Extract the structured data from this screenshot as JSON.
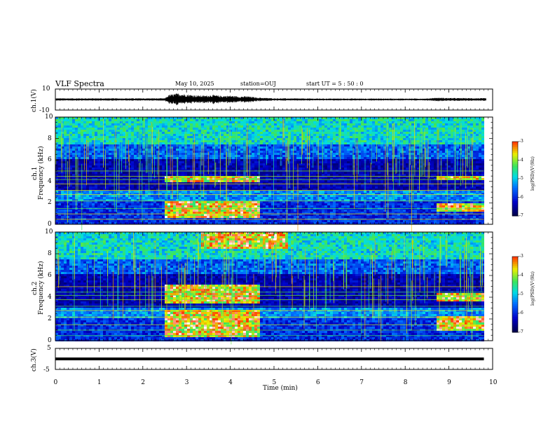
{
  "header": {
    "title": "VLF Spectra",
    "date": "May 10, 2025",
    "station": "station=OUJ",
    "start": "start  UT  =   5  : 50 : 0"
  },
  "chart_data": [
    {
      "type": "line",
      "name_id": "ch1-waveform",
      "ylabel": "ch.1(V)",
      "ylim": [
        -10,
        10
      ],
      "yticks": [
        "10",
        "-10"
      ],
      "xlim": [
        0,
        10
      ],
      "envelope_x": [
        0,
        2.5,
        2.6,
        2.8,
        3.0,
        3.2,
        3.4,
        3.6,
        3.8,
        4.0,
        4.2,
        4.4,
        4.6,
        5.0,
        6.0,
        8.5,
        8.7,
        9.0,
        9.8
      ],
      "envelope_amp": [
        1.2,
        1.2,
        4.5,
        6.0,
        5.0,
        4.2,
        3.8,
        4.5,
        3.5,
        3.8,
        3.0,
        3.2,
        2.0,
        1.2,
        1.0,
        1.0,
        1.8,
        1.5,
        1.3
      ]
    },
    {
      "type": "heatmap",
      "name_id": "ch1-spectrogram",
      "ylabel": "ch.1\nFrequency (kHz)",
      "ylim": [
        0,
        10
      ],
      "yticks": [
        "0",
        "2",
        "4",
        "6",
        "8",
        "10"
      ],
      "xlim": [
        0,
        9.8
      ],
      "colorbar": {
        "label": "log(PSD)(V²/Hz)",
        "range": [
          -7,
          -3
        ],
        "ticks": [
          "-3",
          "-4",
          "-5",
          "-6",
          "-7"
        ]
      },
      "strong_segments": [
        {
          "x": [
            2.5,
            4.65
          ],
          "f": [
            4.1,
            4.7
          ]
        },
        {
          "x": [
            2.5,
            4.65
          ],
          "f": [
            0.6,
            2.2
          ]
        },
        {
          "x": [
            8.7,
            9.8
          ],
          "f": [
            4.2,
            4.7
          ]
        },
        {
          "x": [
            8.7,
            9.8
          ],
          "f": [
            1.2,
            2.0
          ]
        }
      ]
    },
    {
      "type": "heatmap",
      "name_id": "ch2-spectrogram",
      "ylabel": "ch.2\nFrequency (kHz)",
      "ylim": [
        0,
        10
      ],
      "yticks": [
        "0",
        "2",
        "4",
        "6",
        "8",
        "10"
      ],
      "xlim": [
        0,
        9.8
      ],
      "colorbar": {
        "label": "log(PSD)(V²/Hz)",
        "range": [
          -7,
          -3
        ],
        "ticks": [
          "-3",
          "-4",
          "-5",
          "-6",
          "-7"
        ]
      },
      "strong_segments": [
        {
          "x": [
            2.5,
            4.65
          ],
          "f": [
            3.6,
            5.2
          ]
        },
        {
          "x": [
            2.5,
            4.65
          ],
          "f": [
            0.4,
            3.0
          ]
        },
        {
          "x": [
            3.3,
            5.3
          ],
          "f": [
            8.6,
            10.0
          ]
        },
        {
          "x": [
            8.7,
            9.8
          ],
          "f": [
            3.8,
            4.4
          ]
        },
        {
          "x": [
            8.7,
            9.8
          ],
          "f": [
            1.0,
            2.4
          ]
        }
      ]
    },
    {
      "type": "line",
      "name_id": "ch3-waveform",
      "ylabel": "ch.3(V)",
      "ylim": [
        -5,
        5
      ],
      "yticks": [
        "5",
        "-5"
      ],
      "xlim": [
        0,
        10
      ],
      "x": [
        0,
        9.8
      ],
      "y": [
        0,
        0
      ],
      "xlabel": "Time  (min)",
      "xticks": [
        "0",
        "1",
        "2",
        "3",
        "4",
        "5",
        "6",
        "7",
        "8",
        "9",
        "10"
      ]
    }
  ]
}
